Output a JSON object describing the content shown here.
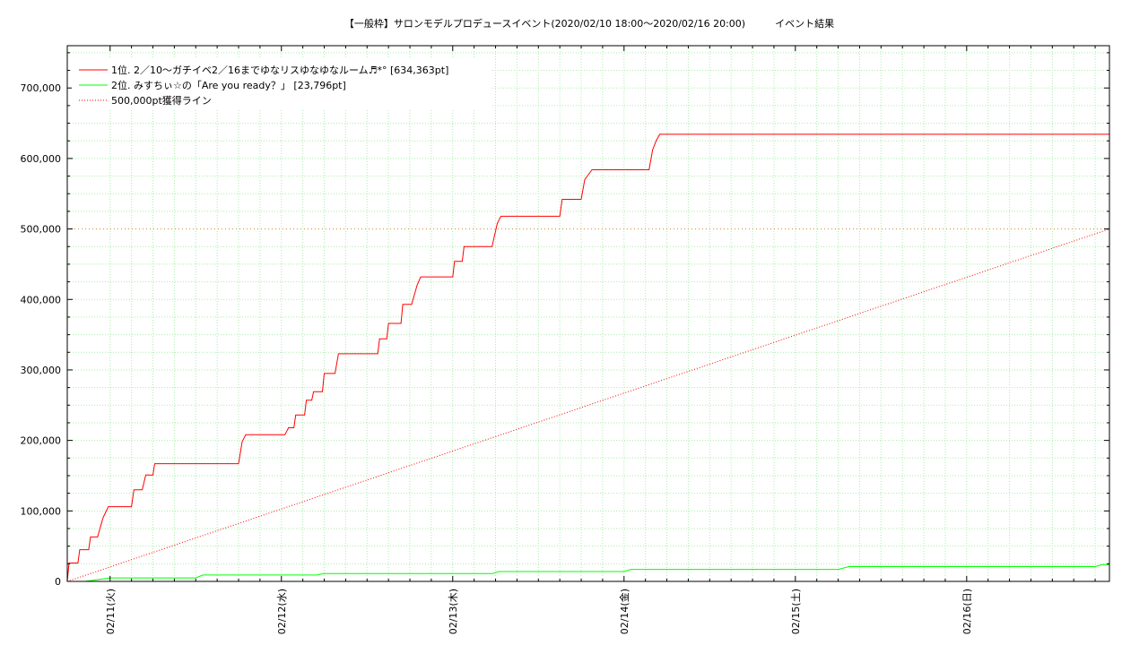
{
  "chart_data": {
    "type": "line",
    "title": "【一般枠】サロンモデルプロデュースイベント(2020/02/10 18:00〜2020/02/16 20:00)　　　イベント結果",
    "x_range": [
      "02/10 18:00",
      "02/16 20:00"
    ],
    "x_ticks": [
      "02/11(火)",
      "02/12(水)",
      "02/13(木)",
      "02/14(金)",
      "02/15(土)",
      "02/16(日)"
    ],
    "y_ticks": [
      "0",
      "100,000",
      "200,000",
      "300,000",
      "400,000",
      "500,000",
      "600,000",
      "700,000"
    ],
    "ylim": [
      0,
      760000
    ],
    "grid": true,
    "legend_position": "top-left",
    "reference_line_y": 500000,
    "series": [
      {
        "name": "1位. 2／10〜ガチイベ2／16までゆなリスゆなゆなルーム♬*° [634,363pt]",
        "color": "#ff0000",
        "style": "solid",
        "points": [
          [
            "02/10 18:00",
            0
          ],
          [
            "02/10 18:15",
            26000
          ],
          [
            "02/10 19:30",
            26000
          ],
          [
            "02/10 19:45",
            45000
          ],
          [
            "02/10 21:00",
            45000
          ],
          [
            "02/10 21:15",
            63000
          ],
          [
            "02/10 22:15",
            63000
          ],
          [
            "02/10 23:00",
            90000
          ],
          [
            "02/10 23:45",
            106000
          ],
          [
            "02/11 03:00",
            106000
          ],
          [
            "02/11 03:20",
            130000
          ],
          [
            "02/11 04:30",
            130000
          ],
          [
            "02/11 05:00",
            151000
          ],
          [
            "02/11 06:00",
            151000
          ],
          [
            "02/11 06:15",
            167000
          ],
          [
            "02/11 18:00",
            167000
          ],
          [
            "02/11 18:30",
            198000
          ],
          [
            "02/11 19:00",
            208000
          ],
          [
            "02/12 00:30",
            208000
          ],
          [
            "02/12 01:00",
            218000
          ],
          [
            "02/12 01:45",
            218000
          ],
          [
            "02/12 02:00",
            236000
          ],
          [
            "02/12 03:15",
            236000
          ],
          [
            "02/12 03:30",
            257000
          ],
          [
            "02/12 04:15",
            257000
          ],
          [
            "02/12 04:30",
            269000
          ],
          [
            "02/12 05:45",
            269000
          ],
          [
            "02/12 06:00",
            295000
          ],
          [
            "02/12 07:30",
            295000
          ],
          [
            "02/12 08:00",
            323000
          ],
          [
            "02/12 13:30",
            323000
          ],
          [
            "02/12 13:45",
            344000
          ],
          [
            "02/12 14:45",
            344000
          ],
          [
            "02/12 15:00",
            366000
          ],
          [
            "02/12 16:45",
            366000
          ],
          [
            "02/12 17:00",
            393000
          ],
          [
            "02/12 18:15",
            393000
          ],
          [
            "02/12 19:00",
            420000
          ],
          [
            "02/12 19:30",
            432000
          ],
          [
            "02/13 00:00",
            432000
          ],
          [
            "02/13 00:15",
            454000
          ],
          [
            "02/13 01:20",
            454000
          ],
          [
            "02/13 01:35",
            475000
          ],
          [
            "02/13 05:30",
            475000
          ],
          [
            "02/13 06:15",
            508000
          ],
          [
            "02/13 06:45",
            518000
          ],
          [
            "02/13 15:00",
            518000
          ],
          [
            "02/13 15:20",
            542000
          ],
          [
            "02/13 18:00",
            542000
          ],
          [
            "02/13 18:30",
            570000
          ],
          [
            "02/13 19:00",
            577000
          ],
          [
            "02/13 19:30",
            584000
          ],
          [
            "02/14 03:30",
            584000
          ],
          [
            "02/14 04:00",
            612000
          ],
          [
            "02/14 04:30",
            625000
          ],
          [
            "02/14 05:00",
            634363
          ],
          [
            "02/16 20:00",
            634363
          ]
        ]
      },
      {
        "name": "2位. みすちぃ☆の「Are you ready？」 [23,796pt]",
        "color": "#00ff00",
        "style": "solid",
        "points": [
          [
            "02/10 20:30",
            0
          ],
          [
            "02/11 00:00",
            5000
          ],
          [
            "02/11 12:00",
            5000
          ],
          [
            "02/11 13:00",
            9000
          ],
          [
            "02/12 05:00",
            9000
          ],
          [
            "02/12 06:00",
            11000
          ],
          [
            "02/13 05:30",
            11000
          ],
          [
            "02/13 06:30",
            14000
          ],
          [
            "02/14 00:00",
            14000
          ],
          [
            "02/14 01:00",
            17000
          ],
          [
            "02/15 06:00",
            17000
          ],
          [
            "02/15 07:30",
            21000
          ],
          [
            "02/16 18:00",
            21000
          ],
          [
            "02/16 19:00",
            23796
          ],
          [
            "02/16 20:00",
            23796
          ]
        ]
      },
      {
        "name": "500,000pt獲得ライン",
        "color": "#ff0000",
        "style": "dotted",
        "points": [
          [
            "02/10 18:00",
            0
          ],
          [
            "02/16 20:00",
            500000
          ]
        ]
      }
    ]
  }
}
